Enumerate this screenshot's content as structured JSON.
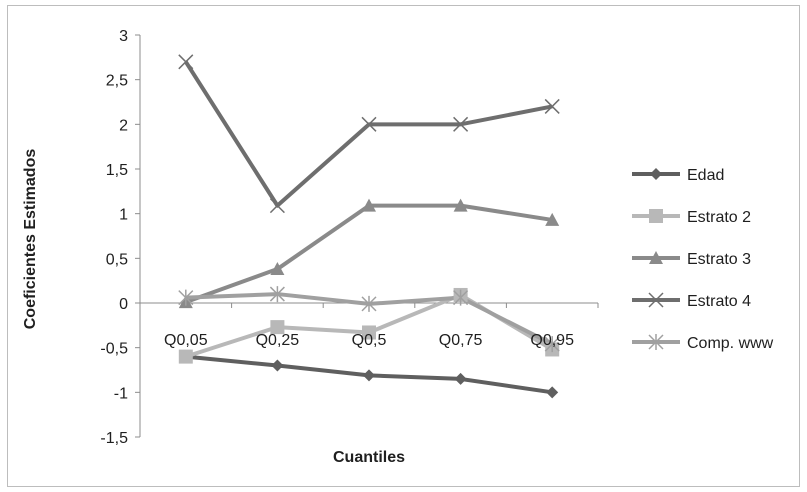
{
  "chart_data": {
    "type": "line",
    "categories": [
      "Q0,05",
      "Q0,25",
      "Q0,5",
      "Q0,75",
      "Q0,95"
    ],
    "xlabel": "Cuantiles",
    "ylabel": "Coeficientes Estimados",
    "ylim": [
      -1.5,
      3
    ],
    "y_ticks": [
      "3",
      "2,5",
      "2",
      "1,5",
      "1",
      "0,5",
      "0",
      "-0,5",
      "-1",
      "-1,5"
    ],
    "y_tick_values": [
      3,
      2.5,
      2,
      1.5,
      1,
      0.5,
      0,
      -0.5,
      -1,
      -1.5
    ],
    "grid": false,
    "legend_position": "right",
    "series": [
      {
        "name": "Edad",
        "color": "#5f5f5f",
        "marker": "diamond",
        "values": [
          -0.6,
          -0.7,
          -0.81,
          -0.85,
          -1.0
        ]
      },
      {
        "name": "Estrato 2",
        "color": "#b8b8b8",
        "marker": "square",
        "values": [
          -0.6,
          -0.27,
          -0.33,
          0.09,
          -0.52
        ]
      },
      {
        "name": "Estrato 3",
        "color": "#8a8a8a",
        "marker": "triangle",
        "values": [
          0.01,
          0.38,
          1.09,
          1.09,
          0.93
        ]
      },
      {
        "name": "Estrato 4",
        "color": "#6e6e6e",
        "marker": "x",
        "values": [
          2.7,
          1.09,
          2.0,
          2.0,
          2.2
        ]
      },
      {
        "name": "Comp. www",
        "color": "#a0a0a0",
        "marker": "star",
        "values": [
          0.06,
          0.1,
          -0.01,
          0.06,
          -0.46
        ]
      }
    ]
  }
}
